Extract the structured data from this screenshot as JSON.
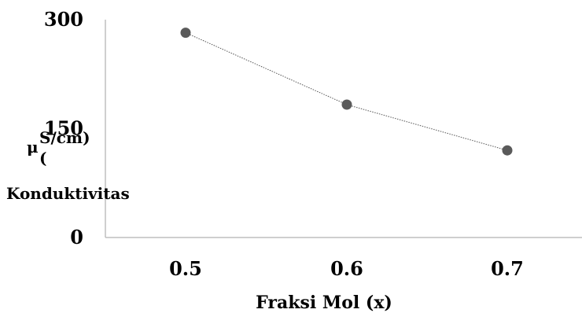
{
  "chart_data": {
    "type": "line",
    "categories": [
      "0.5",
      "0.6",
      "0.7"
    ],
    "series": [
      {
        "values": [
          282,
          183,
          120
        ]
      }
    ],
    "ylim": [
      0,
      300
    ],
    "yticks": [
      "0",
      "150",
      "300"
    ],
    "xlabel": "Fraksi Mol (x)",
    "ylabel_lines": [
      "Konduktivitas",
      "(",
      "μ",
      "S/cm)"
    ],
    "grid": false,
    "legend": "none",
    "colors": {
      "marker": "#5a5a5a",
      "line": "#555555",
      "axis": "#bfbfbf"
    }
  }
}
